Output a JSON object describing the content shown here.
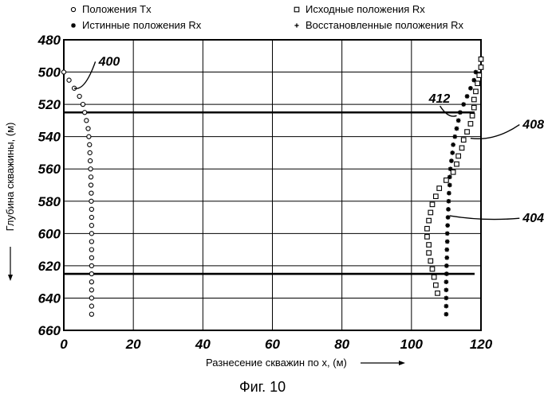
{
  "figure_caption": "Фиг. 10",
  "chart_data": {
    "type": "scatter",
    "xlabel": "Разнесение скважин по x, (м)",
    "ylabel": "Глубина скважины, (м)",
    "xlim": [
      0,
      120
    ],
    "ylim": [
      480,
      660
    ],
    "y_inverted": true,
    "grid": true,
    "legend_position": "top",
    "x_ticks": [
      "0",
      "20",
      "40",
      "60",
      "80",
      "100",
      "120"
    ],
    "y_ticks": [
      "480",
      "500",
      "520",
      "540",
      "560",
      "580",
      "600",
      "620",
      "640",
      "660"
    ],
    "legend": [
      {
        "label": "Положения Tx",
        "marker": "circle"
      },
      {
        "label": "Истинные положения Rx",
        "marker": "asterisk"
      },
      {
        "label": "Исходные положения Rx",
        "marker": "square"
      },
      {
        "label": "Восстановленные положения Rx",
        "marker": "plus"
      }
    ],
    "horizontal_lines": [
      {
        "y": 525
      },
      {
        "y": 625
      }
    ],
    "annotations": [
      {
        "text": "400",
        "x": 10,
        "y": 496,
        "target_x": 3,
        "target_y": 510
      },
      {
        "text": "412",
        "x": 105,
        "y": 519,
        "target_x": 113,
        "target_y": 527
      },
      {
        "text": "408",
        "x": 132,
        "y": 535,
        "target_x": 117,
        "target_y": 541
      },
      {
        "text": "404",
        "x": 132,
        "y": 593,
        "target_x": 111,
        "target_y": 589
      }
    ],
    "series": [
      {
        "name": "Положения Tx",
        "marker": "circle",
        "points": [
          [
            0,
            500
          ],
          [
            1.5,
            505
          ],
          [
            3,
            510
          ],
          [
            4.5,
            515
          ],
          [
            5.5,
            520
          ],
          [
            6,
            525
          ],
          [
            6.5,
            530
          ],
          [
            7,
            535
          ],
          [
            7.2,
            540
          ],
          [
            7.4,
            545
          ],
          [
            7.5,
            550
          ],
          [
            7.6,
            555
          ],
          [
            7.7,
            560
          ],
          [
            7.8,
            565
          ],
          [
            7.8,
            570
          ],
          [
            7.9,
            575
          ],
          [
            7.9,
            580
          ],
          [
            8,
            585
          ],
          [
            8,
            590
          ],
          [
            8,
            595
          ],
          [
            8,
            600
          ],
          [
            8,
            605
          ],
          [
            8,
            610
          ],
          [
            8,
            615
          ],
          [
            8,
            620
          ],
          [
            8,
            625
          ],
          [
            8,
            630
          ],
          [
            8,
            635
          ],
          [
            8,
            640
          ],
          [
            8,
            645
          ],
          [
            8,
            650
          ]
        ]
      },
      {
        "name": "Истинные положения Rx",
        "marker": "asterisk",
        "points": [
          [
            118.5,
            500
          ],
          [
            118,
            505
          ],
          [
            117,
            510
          ],
          [
            116,
            515
          ],
          [
            115,
            520
          ],
          [
            114,
            525
          ],
          [
            113.5,
            530
          ],
          [
            113,
            535
          ],
          [
            112.5,
            540
          ],
          [
            112,
            545
          ],
          [
            111.8,
            550
          ],
          [
            111.5,
            555
          ],
          [
            111.2,
            560
          ],
          [
            111,
            565
          ],
          [
            111,
            570
          ],
          [
            110.8,
            575
          ],
          [
            110.7,
            580
          ],
          [
            110.6,
            585
          ],
          [
            110.5,
            590
          ],
          [
            110.4,
            595
          ],
          [
            110.3,
            600
          ],
          [
            110.3,
            605
          ],
          [
            110.2,
            610
          ],
          [
            110.2,
            615
          ],
          [
            110.1,
            620
          ],
          [
            110.1,
            625
          ],
          [
            110,
            630
          ],
          [
            110,
            635
          ],
          [
            110,
            640
          ],
          [
            110,
            645
          ],
          [
            110,
            650
          ]
        ]
      },
      {
        "name": "Исходные положения Rx",
        "marker": "square",
        "points": [
          [
            120,
            492
          ],
          [
            120,
            497
          ],
          [
            119.5,
            502
          ],
          [
            119,
            507
          ],
          [
            118.5,
            512
          ],
          [
            118,
            517
          ],
          [
            118,
            522
          ],
          [
            117.5,
            527
          ],
          [
            117,
            532
          ],
          [
            116,
            537
          ],
          [
            115,
            542
          ],
          [
            114.5,
            547
          ],
          [
            113.5,
            552
          ],
          [
            113,
            557
          ],
          [
            112,
            562
          ],
          [
            110,
            567
          ],
          [
            108,
            572
          ],
          [
            107,
            577
          ],
          [
            106,
            582
          ],
          [
            105.5,
            587
          ],
          [
            105,
            592
          ],
          [
            104.5,
            597
          ],
          [
            104.5,
            602
          ],
          [
            105,
            607
          ],
          [
            105,
            612
          ],
          [
            105.5,
            617
          ],
          [
            106,
            622
          ],
          [
            106.5,
            627
          ],
          [
            107,
            632
          ],
          [
            107.5,
            637
          ]
        ]
      },
      {
        "name": "Восстановленные положения Rx",
        "marker": "plus",
        "points": [
          [
            118.5,
            500
          ],
          [
            118,
            505
          ],
          [
            117,
            510
          ],
          [
            116,
            515
          ],
          [
            115,
            520
          ],
          [
            114,
            525
          ],
          [
            113.5,
            530
          ],
          [
            113,
            535
          ],
          [
            112.5,
            540
          ],
          [
            112,
            545
          ],
          [
            111.8,
            550
          ],
          [
            111.5,
            555
          ],
          [
            111.2,
            560
          ],
          [
            111,
            565
          ],
          [
            111,
            570
          ],
          [
            110.8,
            575
          ],
          [
            110.7,
            580
          ],
          [
            110.6,
            585
          ],
          [
            110.5,
            590
          ],
          [
            110.4,
            595
          ],
          [
            110.3,
            600
          ],
          [
            110.3,
            605
          ],
          [
            110.2,
            610
          ],
          [
            110.2,
            615
          ],
          [
            110.1,
            620
          ],
          [
            110.1,
            625
          ],
          [
            110,
            630
          ],
          [
            110,
            635
          ],
          [
            110,
            640
          ],
          [
            110,
            645
          ],
          [
            110,
            650
          ]
        ]
      }
    ]
  }
}
